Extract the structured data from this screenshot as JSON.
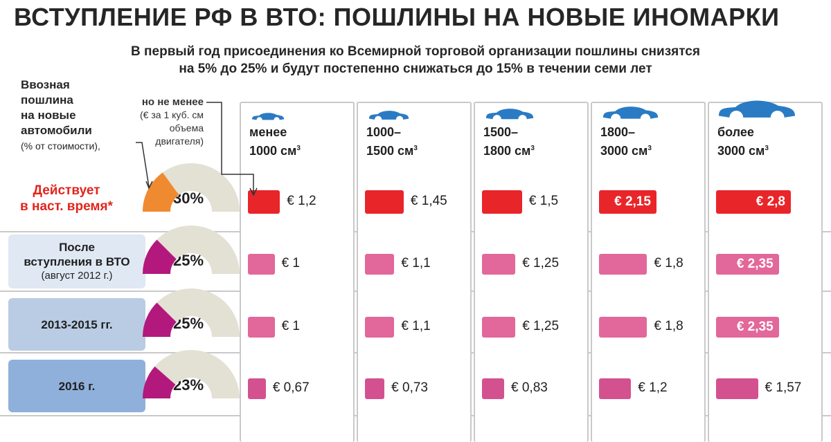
{
  "title": "ВСТУПЛЕНИЕ РФ В ВТО: ПОШЛИНЫ НА НОВЫЕ ИНОМАРКИ",
  "subtitle_line1": "В первый год присоединения ко Всемирной торговой организации пошлины снизятся",
  "subtitle_line2": "на 5% до 25% и будут постепенно снижаться до 15% в течении семи лет",
  "legend": {
    "duty_line1": "Ввозная",
    "duty_line2": "пошлина",
    "duty_line3": "на новые",
    "duty_line4": "автомобили",
    "duty_sub": "(% от стоимости),",
    "min_line1": "но не менее",
    "min_line2": "(€ за 1 куб. см",
    "min_line3": "объема",
    "min_line4": "двигателя)"
  },
  "colors": {
    "current": "#e8262a",
    "future": "#e2679a",
    "future_dark": "#d45190",
    "gauge_current": "#f08a30",
    "gauge_future": "#b3197d",
    "gauge_bg": "#e3e0d4",
    "row_label_light": "#dfe8f3",
    "row_label_mid": "#b9cce4",
    "row_label_dark": "#8fb0da",
    "car": "#2a7bc4"
  },
  "chart_data": {
    "type": "bar",
    "categories": [
      {
        "line1": "менее",
        "line2": "1000 см",
        "sup": "3"
      },
      {
        "line1": "1000–",
        "line2": "1500 см",
        "sup": "3"
      },
      {
        "line1": "1500–",
        "line2": "1800 см",
        "sup": "3"
      },
      {
        "line1": "1800–",
        "line2": "3000 см",
        "sup": "3"
      },
      {
        "line1": "более",
        "line2": "3000 см",
        "sup": "3"
      }
    ],
    "ylim": [
      0,
      2.8
    ],
    "rows": [
      {
        "label1": "Действует",
        "label2": "в наст. время*",
        "percent_label": "30%",
        "percent": 30,
        "values": [
          1.2,
          1.45,
          1.5,
          2.15,
          2.8
        ],
        "value_labels": [
          "€ 1,2",
          "€ 1,45",
          "€ 1,5",
          "€ 2,15",
          "€ 2,8"
        ]
      },
      {
        "label1": "После",
        "label2": "вступления в ВТО",
        "label3": "(август 2012 г.)",
        "percent_label": "25%",
        "percent": 25,
        "values": [
          1.0,
          1.1,
          1.25,
          1.8,
          2.35
        ],
        "value_labels": [
          "€ 1",
          "€ 1,1",
          "€ 1,25",
          "€ 1,8",
          "€ 2,35"
        ]
      },
      {
        "label1": "2013-2015 гг.",
        "percent_label": "25%",
        "percent": 25,
        "values": [
          1.0,
          1.1,
          1.25,
          1.8,
          2.35
        ],
        "value_labels": [
          "€ 1",
          "€ 1,1",
          "€ 1,25",
          "€ 1,8",
          "€ 2,35"
        ]
      },
      {
        "label1": "2016 г.",
        "percent_label": "23%",
        "percent": 23,
        "values": [
          0.67,
          0.73,
          0.83,
          1.2,
          1.57
        ],
        "value_labels": [
          "€ 0,67",
          "€ 0,73",
          "€ 0,83",
          "€ 1,2",
          "€ 1,57"
        ]
      }
    ]
  }
}
